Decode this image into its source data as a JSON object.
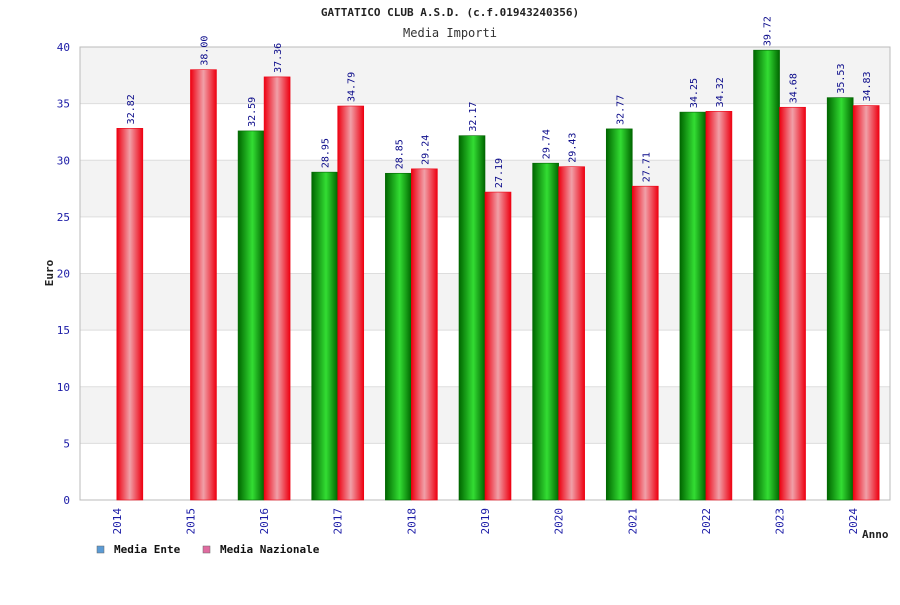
{
  "chart_data": {
    "type": "bar",
    "title": "GATTATICO CLUB A.S.D. (c.f.01943240356)",
    "subtitle": "Media Importi",
    "xlabel": "Anno",
    "ylabel": "Euro",
    "ylim": [
      0,
      40
    ],
    "yticks": [
      0,
      5,
      10,
      15,
      20,
      25,
      30,
      35,
      40
    ],
    "grid": true,
    "legend_position": "bottom-left",
    "categories": [
      "2014",
      "2015",
      "2016",
      "2017",
      "2018",
      "2019",
      "2020",
      "2021",
      "2022",
      "2023",
      "2024"
    ],
    "series": [
      {
        "name": "Media Ente",
        "values": [
          null,
          null,
          32.59,
          28.95,
          28.85,
          32.17,
          29.74,
          32.77,
          34.25,
          39.72,
          35.53
        ],
        "labels": [
          "",
          "",
          "32.59",
          "28.95",
          "28.85",
          "32.17",
          "29.74",
          "32.77",
          "34.25",
          "39.72",
          "35.53"
        ]
      },
      {
        "name": "Media Nazionale",
        "values": [
          32.82,
          38.0,
          37.36,
          34.79,
          29.24,
          27.19,
          29.43,
          27.71,
          34.32,
          34.68,
          34.83
        ],
        "labels": [
          "32.82",
          "38.00",
          "37.36",
          "34.79",
          "29.24",
          "27.19",
          "29.43",
          "27.71",
          "34.32",
          "34.68",
          "34.83"
        ]
      }
    ],
    "colors": {
      "ente_dark": "#006600",
      "ente_light": "#33dd33",
      "naz_dark": "#ee0011",
      "naz_light": "#f0a0a8",
      "legend_ente": "#5b9bd5",
      "legend_naz": "#e06ba0",
      "band": "#f3f3f3",
      "grid": "#dddddd",
      "axis": "#bbbbbb"
    }
  }
}
